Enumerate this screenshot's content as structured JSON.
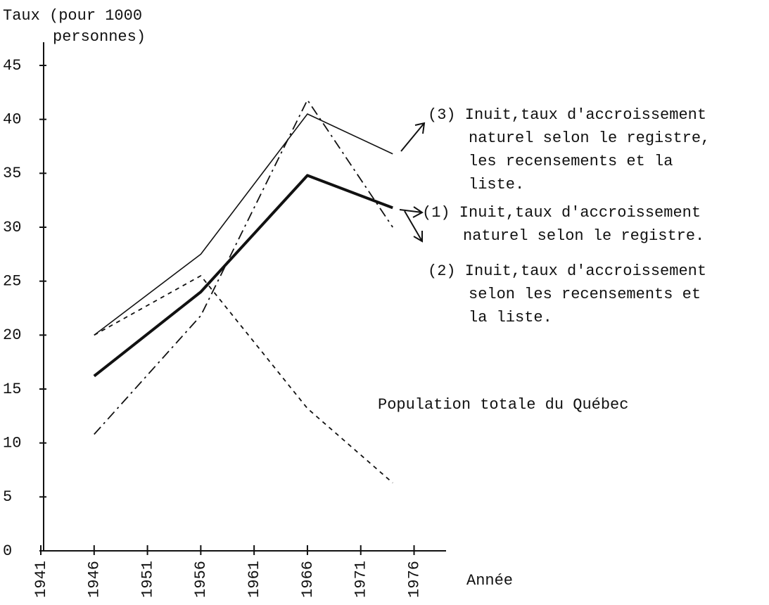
{
  "chart_data": {
    "type": "line",
    "y_label": [
      "Taux (pour 1000",
      "personnes)"
    ],
    "x_label": "Année",
    "xlim": [
      1941,
      1979
    ],
    "xticks": [
      1941,
      1946,
      1951,
      1956,
      1961,
      1966,
      1971,
      1976
    ],
    "ylim": [
      0,
      45
    ],
    "yticks": [
      0,
      5,
      10,
      15,
      20,
      25,
      30,
      35,
      40,
      45
    ],
    "grid": false,
    "series": [
      {
        "name": [
          "(3) Inuit,taux d'accroissement",
          "naturel selon le registre,",
          "les recensements et la",
          "liste."
        ],
        "color": "#111",
        "style": "solid",
        "x": [
          1946,
          1956,
          1966,
          1974
        ],
        "values": [
          20,
          27.5,
          40.5,
          36.8
        ]
      },
      {
        "name": [
          "(1) Inuit,taux d'accroissement",
          "naturel selon le registre."
        ],
        "color": "#111",
        "style": "bold",
        "x": [
          1946,
          1956,
          1966,
          1974
        ],
        "values": [
          16.2,
          24,
          34.8,
          31.8
        ]
      },
      {
        "name": [
          "(2) Inuit,taux d'accroissement",
          "selon les recensements et",
          "la liste."
        ],
        "color": "#111",
        "style": "dashdot",
        "x": [
          1946,
          1956,
          1966,
          1974
        ],
        "values": [
          10.8,
          21.8,
          41.8,
          30
        ]
      },
      {
        "name": [
          "Population totale du Québec"
        ],
        "color": "#111",
        "style": "dashed",
        "x": [
          1946,
          1956,
          1966,
          1974
        ],
        "values": [
          20,
          25.5,
          13.2,
          6.3
        ]
      }
    ]
  }
}
